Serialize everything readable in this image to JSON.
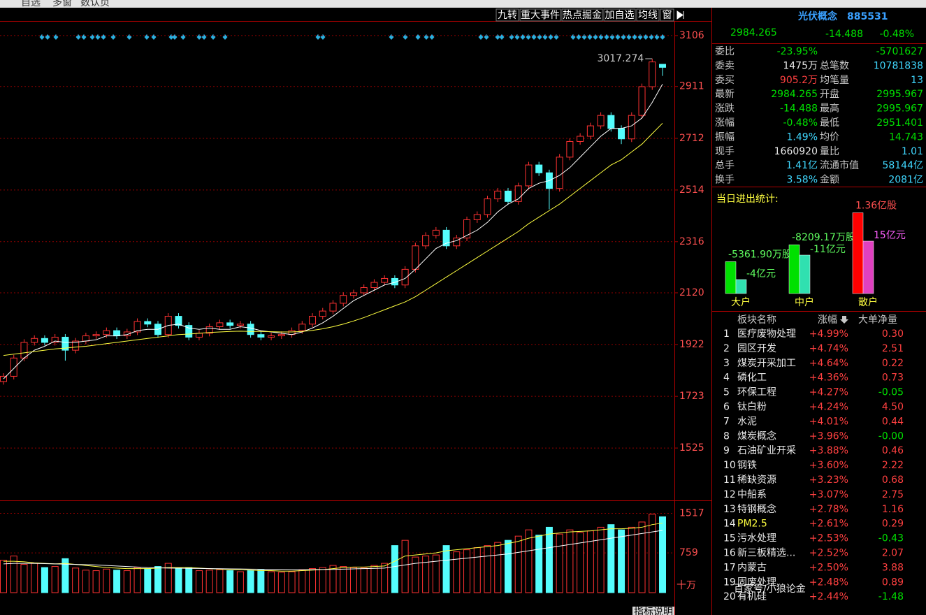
{
  "menu": [
    "自选",
    "多窗",
    "数认页"
  ],
  "toolbar": [
    "九转",
    "重大事件",
    "热点掘金",
    "加自选",
    "均线",
    "窗"
  ],
  "chart_data": {
    "type": "candlestick",
    "ylim": [
      1327,
      3162
    ],
    "yticks": [
      3106,
      2911,
      2712,
      2514,
      2316,
      2120,
      1922,
      1723,
      1525
    ],
    "grid": true,
    "up_color": "#ff3232",
    "down_color": "#54fcfc",
    "candles": [
      [
        1780,
        1812,
        1768,
        1800
      ],
      [
        1800,
        1882,
        1788,
        1870
      ],
      [
        1870,
        1942,
        1858,
        1930
      ],
      [
        1930,
        1957,
        1918,
        1945
      ],
      [
        1945,
        1957,
        1918,
        1930
      ],
      [
        1930,
        1962,
        1918,
        1950
      ],
      [
        1950,
        1962,
        1860,
        1900
      ],
      [
        1900,
        1947,
        1888,
        1935
      ],
      [
        1935,
        1967,
        1923,
        1955
      ],
      [
        1955,
        1972,
        1943,
        1960
      ],
      [
        1960,
        1987,
        1948,
        1975
      ],
      [
        1975,
        1987,
        1943,
        1955
      ],
      [
        1955,
        1982,
        1943,
        1970
      ],
      [
        1970,
        2022,
        1958,
        2010
      ],
      [
        2010,
        2022,
        1988,
        2000
      ],
      [
        2000,
        2012,
        1948,
        1960
      ],
      [
        1960,
        2042,
        1948,
        2030
      ],
      [
        2030,
        2042,
        1983,
        1995
      ],
      [
        1995,
        2007,
        1938,
        1950
      ],
      [
        1950,
        1977,
        1938,
        1965
      ],
      [
        1965,
        2002,
        1953,
        1990
      ],
      [
        1990,
        2017,
        1978,
        2005
      ],
      [
        2005,
        2017,
        1983,
        1995
      ],
      [
        1995,
        2012,
        1983,
        2000
      ],
      [
        2000,
        2012,
        1948,
        1960
      ],
      [
        1960,
        1972,
        1938,
        1950
      ],
      [
        1950,
        1967,
        1938,
        1955
      ],
      [
        1955,
        1972,
        1943,
        1960
      ],
      [
        1960,
        1987,
        1948,
        1975
      ],
      [
        1975,
        2012,
        1963,
        2000
      ],
      [
        2000,
        2042,
        1988,
        2030
      ],
      [
        2030,
        2062,
        2018,
        2050
      ],
      [
        2050,
        2092,
        2038,
        2080
      ],
      [
        2080,
        2122,
        2068,
        2110
      ],
      [
        2110,
        2132,
        2098,
        2120
      ],
      [
        2120,
        2152,
        2108,
        2140
      ],
      [
        2140,
        2172,
        2128,
        2160
      ],
      [
        2160,
        2187,
        2148,
        2175
      ],
      [
        2175,
        2187,
        2138,
        2150
      ],
      [
        2150,
        2222,
        2138,
        2210
      ],
      [
        2210,
        2312,
        2198,
        2300
      ],
      [
        2300,
        2352,
        2288,
        2340
      ],
      [
        2340,
        2372,
        2328,
        2360
      ],
      [
        2360,
        2372,
        2288,
        2300
      ],
      [
        2300,
        2342,
        2288,
        2330
      ],
      [
        2330,
        2412,
        2318,
        2400
      ],
      [
        2400,
        2432,
        2388,
        2420
      ],
      [
        2420,
        2492,
        2408,
        2480
      ],
      [
        2480,
        2522,
        2468,
        2510
      ],
      [
        2510,
        2522,
        2458,
        2470
      ],
      [
        2470,
        2542,
        2458,
        2530
      ],
      [
        2530,
        2622,
        2518,
        2610
      ],
      [
        2610,
        2622,
        2568,
        2580
      ],
      [
        2580,
        2592,
        2440,
        2520
      ],
      [
        2520,
        2652,
        2508,
        2640
      ],
      [
        2640,
        2712,
        2628,
        2700
      ],
      [
        2700,
        2732,
        2688,
        2720
      ],
      [
        2720,
        2772,
        2708,
        2760
      ],
      [
        2760,
        2812,
        2748,
        2800
      ],
      [
        2800,
        2812,
        2738,
        2750
      ],
      [
        2750,
        2762,
        2690,
        2710
      ],
      [
        2710,
        2812,
        2698,
        2800
      ],
      [
        2800,
        2922,
        2788,
        2910
      ],
      [
        2910,
        3017.274,
        2898,
        3005
      ],
      [
        2995.967,
        2995.967,
        2951.401,
        2984.265
      ]
    ],
    "lines": [
      {
        "color": "#ffffff",
        "values": [
          1790,
          1830,
          1870,
          1900,
          1915,
          1935,
          1930,
          1930,
          1935,
          1940,
          1955,
          1955,
          1960,
          1975,
          1980,
          1980,
          1995,
          2000,
          1985,
          1980,
          1985,
          1980,
          1980,
          1990,
          1985,
          1975,
          1970,
          1965,
          1960,
          1970,
          1985,
          2005,
          2030,
          2060,
          2090,
          2110,
          2130,
          2150,
          2160,
          2175,
          2210,
          2250,
          2290,
          2310,
          2320,
          2340,
          2360,
          2390,
          2430,
          2460,
          2480,
          2520,
          2540,
          2550,
          2570,
          2600,
          2640,
          2680,
          2720,
          2750,
          2750,
          2760,
          2790,
          2850,
          2920
        ]
      },
      {
        "color": "#ffff40",
        "values": [
          1880,
          1885,
          1890,
          1895,
          1900,
          1905,
          1908,
          1912,
          1915,
          1920,
          1925,
          1930,
          1935,
          1940,
          1945,
          1950,
          1955,
          1960,
          1962,
          1965,
          1968,
          1970,
          1972,
          1973,
          1972,
          1972,
          1971,
          1970,
          1970,
          1972,
          1976,
          1982,
          1990,
          2000,
          2012,
          2025,
          2040,
          2055,
          2070,
          2085,
          2105,
          2130,
          2155,
          2180,
          2205,
          2230,
          2255,
          2280,
          2305,
          2330,
          2355,
          2385,
          2410,
          2435,
          2460,
          2490,
          2520,
          2550,
          2580,
          2610,
          2630,
          2660,
          2690,
          2730,
          2770
        ]
      }
    ],
    "volume": {
      "ylim": [
        0,
        1750
      ],
      "yticks": [
        1517,
        759
      ],
      "unit": "十万",
      "values": [
        620,
        700,
        540,
        560,
        480,
        500,
        650,
        470,
        430,
        420,
        450,
        430,
        420,
        480,
        460,
        500,
        560,
        470,
        480,
        420,
        430,
        440,
        420,
        400,
        420,
        430,
        400,
        390,
        400,
        430,
        460,
        480,
        520,
        500,
        480,
        470,
        520,
        560,
        900,
        1000,
        680,
        700,
        720,
        900,
        780,
        820,
        860,
        900,
        960,
        1000,
        1080,
        1200,
        1100,
        1250,
        1120,
        1200,
        1150,
        1180,
        1250,
        1300,
        1200,
        1250,
        1350,
        1500,
        1450
      ],
      "lines": [
        {
          "color": "#ffff40",
          "values": [
            600,
            600,
            590,
            570,
            560,
            550,
            560,
            540,
            520,
            500,
            480,
            470,
            460,
            460,
            460,
            470,
            480,
            480,
            480,
            470,
            460,
            450,
            440,
            440,
            430,
            420,
            420,
            410,
            410,
            420,
            430,
            440,
            460,
            480,
            490,
            490,
            500,
            510,
            600,
            700,
            720,
            740,
            760,
            800,
            820,
            840,
            860,
            880,
            900,
            940,
            980,
            1040,
            1080,
            1120,
            1140,
            1160,
            1170,
            1180,
            1200,
            1220,
            1220,
            1230,
            1250,
            1300,
            1330
          ]
        },
        {
          "color": "#ffffff",
          "values": [
            550,
            560,
            560,
            560,
            555,
            550,
            545,
            540,
            535,
            530,
            520,
            510,
            500,
            490,
            480,
            475,
            470,
            468,
            465,
            462,
            460,
            458,
            455,
            452,
            450,
            448,
            445,
            442,
            440,
            440,
            440,
            442,
            445,
            450,
            455,
            460,
            465,
            470,
            500,
            530,
            560,
            580,
            600,
            620,
            640,
            660,
            680,
            700,
            720,
            740,
            770,
            800,
            830,
            860,
            890,
            920,
            950,
            980,
            1010,
            1040,
            1070,
            1100,
            1130,
            1160,
            1190
          ]
        }
      ]
    },
    "footer": "指标说明"
  },
  "quote": {
    "name": "光伏概念",
    "code": "885531",
    "price": "2984.265",
    "change": "-14.488",
    "pct": "-0.48%"
  },
  "stats": [
    [
      "委比",
      "-23.95%",
      "-5701627"
    ],
    [
      "委卖",
      "1475万",
      "总笔数",
      "10781838"
    ],
    [
      "委买",
      "905.2万",
      "均笔量",
      "13"
    ],
    [
      "最新",
      "2984.265",
      "开盘",
      "2995.967"
    ],
    [
      "涨跌",
      "-14.488",
      "最高",
      "2995.967"
    ],
    [
      "涨幅",
      "-0.48%",
      "最低",
      "2951.401"
    ],
    [
      "振幅",
      "1.49%",
      "均价",
      "14.743"
    ],
    [
      "现手",
      "1660920",
      "量比",
      "1.01"
    ],
    [
      "总手",
      "1.41亿",
      "流通市值",
      "58144亿"
    ],
    [
      "换手",
      "3.58%",
      "金额",
      "2081亿"
    ]
  ],
  "flow": {
    "title": "当日进出统计:",
    "groups": [
      {
        "name": "大户",
        "shares": -5361.9,
        "shares_label": "-5361.90万股",
        "money": -4,
        "money_label": "-4亿元"
      },
      {
        "name": "中户",
        "shares": -8209.17,
        "shares_label": "-8209.17万股",
        "money": -11,
        "money_label": "-11亿元"
      },
      {
        "name": "散户",
        "shares": 13600,
        "shares_label": "1.36亿股",
        "money": 15,
        "money_label": "15亿元"
      }
    ]
  },
  "sectors": {
    "headers": [
      "板块名称",
      "涨幅",
      "大单净量"
    ],
    "rows": [
      [
        "1",
        "医疗废物处理",
        "+4.99%",
        "0.30"
      ],
      [
        "2",
        "园区开发",
        "+4.74%",
        "2.51"
      ],
      [
        "3",
        "煤炭开采加工",
        "+4.64%",
        "0.22"
      ],
      [
        "4",
        "磷化工",
        "+4.36%",
        "0.73"
      ],
      [
        "5",
        "环保工程",
        "+4.27%",
        "-0.05"
      ],
      [
        "6",
        "钛白粉",
        "+4.24%",
        "4.50"
      ],
      [
        "7",
        "水泥",
        "+4.01%",
        "0.44"
      ],
      [
        "8",
        "煤炭概念",
        "+3.96%",
        "-0.00"
      ],
      [
        "9",
        "石油矿业开采",
        "+3.88%",
        "0.46"
      ],
      [
        "10",
        "钢铁",
        "+3.60%",
        "2.22"
      ],
      [
        "11",
        "稀缺资源",
        "+3.23%",
        "0.68"
      ],
      [
        "12",
        "中船系",
        "+3.07%",
        "2.75"
      ],
      [
        "13",
        "特钢概念",
        "+2.78%",
        "1.16"
      ],
      [
        "14",
        "PM2.5",
        "+2.61%",
        "0.29"
      ],
      [
        "15",
        "污水处理",
        "+2.53%",
        "-0.43"
      ],
      [
        "16",
        "新三板精选...",
        "+2.52%",
        "2.07"
      ],
      [
        "17",
        "内蒙古",
        "+2.50%",
        "3.88"
      ],
      [
        "19",
        "固废处理",
        "+2.48%",
        "0.89"
      ],
      [
        "20",
        "有机硅",
        "+2.44%",
        "-1.48"
      ]
    ]
  },
  "watermark": "百家号/小狼论金"
}
